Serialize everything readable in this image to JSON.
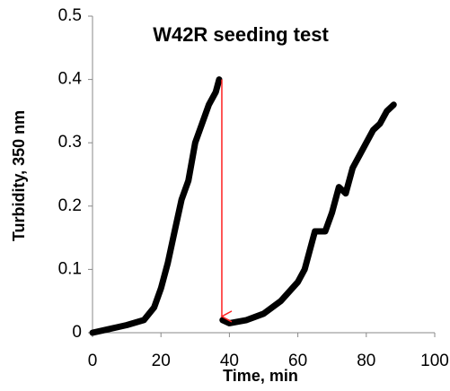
{
  "chart_data": {
    "type": "line",
    "title": "W42R seeding test",
    "x_label": "Time, min",
    "y_label": "Turbidity, 350 nm",
    "x": [
      0,
      5,
      10,
      15,
      18,
      20,
      22,
      24,
      26,
      28,
      30,
      32,
      34,
      36,
      37,
      null,
      38,
      40,
      45,
      50,
      55,
      60,
      62,
      65,
      68,
      70,
      72,
      74,
      76,
      78,
      80,
      82,
      84,
      86,
      88
    ],
    "series": [
      {
        "name": "W42R",
        "color": "#000000",
        "values": [
          0,
          0.006,
          0.012,
          0.02,
          0.04,
          0.07,
          0.11,
          0.16,
          0.21,
          0.24,
          0.3,
          0.33,
          0.36,
          0.38,
          0.4,
          null,
          0.02,
          0.015,
          0.02,
          0.03,
          0.05,
          0.08,
          0.1,
          0.16,
          0.16,
          0.19,
          0.23,
          0.22,
          0.26,
          0.28,
          0.3,
          0.32,
          0.33,
          0.35,
          0.36
        ]
      }
    ],
    "xlim": [
      0,
      100
    ],
    "xticks": [
      0,
      20,
      40,
      60,
      80,
      100
    ],
    "ylim": [
      0,
      0.5
    ],
    "yticks": [
      0,
      0.1,
      0.2,
      0.3,
      0.4,
      0.5
    ]
  }
}
